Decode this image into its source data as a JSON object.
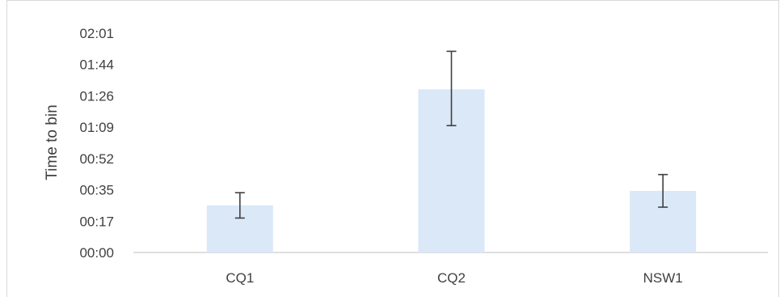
{
  "chart_data": {
    "type": "bar",
    "title": "",
    "xlabel": "",
    "ylabel": "Time to bin",
    "categories": [
      "CQ1",
      "CQ2",
      "NSW1"
    ],
    "values": [
      26,
      90,
      34
    ],
    "error_bars": [
      {
        "low": 19,
        "high": 33
      },
      {
        "low": 70,
        "high": 111
      },
      {
        "low": 25,
        "high": 43
      }
    ],
    "y_ticks": [
      "00:00",
      "00:17",
      "00:35",
      "00:52",
      "01:09",
      "01:26",
      "01:44",
      "02:01"
    ],
    "y_tick_values_seconds": [
      0,
      17.3,
      34.6,
      51.9,
      69.1,
      86.4,
      103.7,
      121
    ],
    "ylim": [
      0,
      121
    ],
    "grid": false,
    "colors": {
      "bar": "#dae8f7",
      "error_bar": "#404040",
      "axis": "#bfbfbf"
    }
  }
}
